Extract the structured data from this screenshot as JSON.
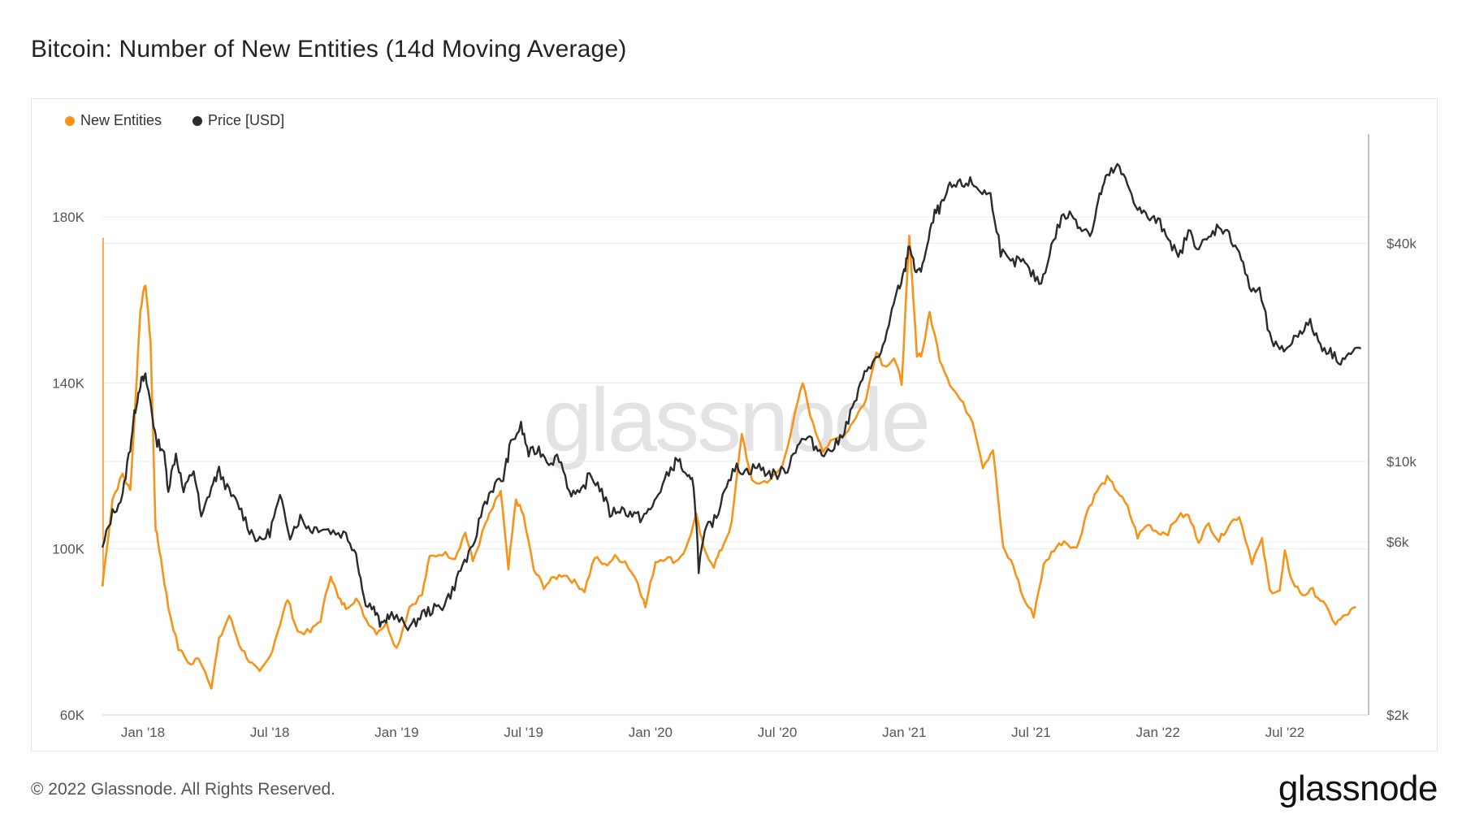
{
  "title": "Bitcoin: Number of New Entities (14d Moving Average)",
  "footer": "© 2022 Glassnode. All Rights Reserved.",
  "brand": "glassnode",
  "watermark": "glassnode",
  "colors": {
    "entities": "#f7931a",
    "price": "#2b2b2b",
    "grid": "#ececec",
    "axis": "#9a9a9a"
  },
  "chart_data": {
    "type": "line",
    "title": "Bitcoin: Number of New Entities (14d Moving Average)",
    "x_range": [
      2017.84,
      2022.83
    ],
    "x_ticks": [
      {
        "label": "Jan '18",
        "x": 2018.0
      },
      {
        "label": "Jul '18",
        "x": 2018.5
      },
      {
        "label": "Jan '19",
        "x": 2019.0
      },
      {
        "label": "Jul '19",
        "x": 2019.5
      },
      {
        "label": "Jan '20",
        "x": 2020.0
      },
      {
        "label": "Jul '20",
        "x": 2020.5
      },
      {
        "label": "Jan '21",
        "x": 2021.0
      },
      {
        "label": "Jul '21",
        "x": 2021.5
      },
      {
        "label": "Jan '22",
        "x": 2022.0
      },
      {
        "label": "Jul '22",
        "x": 2022.5
      }
    ],
    "y_left": {
      "range": [
        60000,
        200000
      ],
      "ticks": [
        {
          "label": "60K",
          "v": 60000
        },
        {
          "label": "100K",
          "v": 100000
        },
        {
          "label": "140K",
          "v": 140000
        },
        {
          "label": "180K",
          "v": 180000
        }
      ]
    },
    "y_right": {
      "scale": "log",
      "range": [
        2000,
        80000
      ],
      "ticks": [
        {
          "label": "$2k",
          "v": 2000
        },
        {
          "label": "$6k",
          "v": 6000
        },
        {
          "label": "$10k",
          "v": 10000
        },
        {
          "label": "$40k",
          "v": 40000
        }
      ]
    },
    "legend_position": "top-left",
    "series": [
      {
        "name": "New Entities",
        "axis": "left",
        "points": [
          [
            2017.84,
            91000
          ],
          [
            2017.88,
            112000
          ],
          [
            2017.92,
            118000
          ],
          [
            2017.95,
            114000
          ],
          [
            2017.97,
            135000
          ],
          [
            2017.99,
            158000
          ],
          [
            2018.01,
            164000
          ],
          [
            2018.03,
            150000
          ],
          [
            2018.05,
            105000
          ],
          [
            2018.07,
            98000
          ],
          [
            2018.1,
            86000
          ],
          [
            2018.14,
            76000
          ],
          [
            2018.19,
            72000
          ],
          [
            2018.22,
            74000
          ],
          [
            2018.27,
            67000
          ],
          [
            2018.3,
            78000
          ],
          [
            2018.34,
            84000
          ],
          [
            2018.38,
            77000
          ],
          [
            2018.42,
            73000
          ],
          [
            2018.46,
            70000
          ],
          [
            2018.5,
            74000
          ],
          [
            2018.54,
            82000
          ],
          [
            2018.57,
            88000
          ],
          [
            2018.61,
            80000
          ],
          [
            2018.66,
            80000
          ],
          [
            2018.7,
            83000
          ],
          [
            2018.74,
            94000
          ],
          [
            2018.77,
            88000
          ],
          [
            2018.8,
            86000
          ],
          [
            2018.84,
            88000
          ],
          [
            2018.88,
            83000
          ],
          [
            2018.92,
            80000
          ],
          [
            2018.96,
            82000
          ],
          [
            2019.0,
            76000
          ],
          [
            2019.05,
            86000
          ],
          [
            2019.1,
            89000
          ],
          [
            2019.13,
            98000
          ],
          [
            2019.18,
            99000
          ],
          [
            2019.23,
            98000
          ],
          [
            2019.27,
            104000
          ],
          [
            2019.3,
            97000
          ],
          [
            2019.35,
            106000
          ],
          [
            2019.38,
            110000
          ],
          [
            2019.41,
            114000
          ],
          [
            2019.44,
            95000
          ],
          [
            2019.47,
            112000
          ],
          [
            2019.5,
            108000
          ],
          [
            2019.54,
            95000
          ],
          [
            2019.58,
            91000
          ],
          [
            2019.62,
            93000
          ],
          [
            2019.66,
            94000
          ],
          [
            2019.7,
            92000
          ],
          [
            2019.74,
            90000
          ],
          [
            2019.78,
            98000
          ],
          [
            2019.82,
            96000
          ],
          [
            2019.86,
            98000
          ],
          [
            2019.9,
            97000
          ],
          [
            2019.95,
            92000
          ],
          [
            2019.98,
            86000
          ],
          [
            2020.02,
            97000
          ],
          [
            2020.06,
            98000
          ],
          [
            2020.1,
            97000
          ],
          [
            2020.14,
            100000
          ],
          [
            2020.18,
            108000
          ],
          [
            2020.21,
            100000
          ],
          [
            2020.25,
            96000
          ],
          [
            2020.28,
            100000
          ],
          [
            2020.32,
            106000
          ],
          [
            2020.36,
            128000
          ],
          [
            2020.4,
            116000
          ],
          [
            2020.44,
            116000
          ],
          [
            2020.48,
            117000
          ],
          [
            2020.52,
            120000
          ],
          [
            2020.56,
            130000
          ],
          [
            2020.6,
            140000
          ],
          [
            2020.64,
            130000
          ],
          [
            2020.68,
            124000
          ],
          [
            2020.72,
            126000
          ],
          [
            2020.77,
            128000
          ],
          [
            2020.81,
            132000
          ],
          [
            2020.85,
            136000
          ],
          [
            2020.89,
            148000
          ],
          [
            2020.92,
            144000
          ],
          [
            2020.96,
            146000
          ],
          [
            2020.99,
            140000
          ],
          [
            2021.02,
            175000
          ],
          [
            2021.05,
            147000
          ],
          [
            2021.07,
            147000
          ],
          [
            2021.1,
            157000
          ],
          [
            2021.14,
            146000
          ],
          [
            2021.18,
            140000
          ],
          [
            2021.22,
            136000
          ],
          [
            2021.27,
            131000
          ],
          [
            2021.31,
            120000
          ],
          [
            2021.35,
            124000
          ],
          [
            2021.39,
            100000
          ],
          [
            2021.43,
            96000
          ],
          [
            2021.47,
            88000
          ],
          [
            2021.51,
            84000
          ],
          [
            2021.55,
            96000
          ],
          [
            2021.59,
            100000
          ],
          [
            2021.63,
            102000
          ],
          [
            2021.68,
            100000
          ],
          [
            2021.72,
            109000
          ],
          [
            2021.76,
            114000
          ],
          [
            2021.8,
            117000
          ],
          [
            2021.84,
            114000
          ],
          [
            2021.88,
            110000
          ],
          [
            2021.92,
            103000
          ],
          [
            2021.96,
            106000
          ],
          [
            2022.0,
            104000
          ],
          [
            2022.04,
            104000
          ],
          [
            2022.08,
            108000
          ],
          [
            2022.12,
            108000
          ],
          [
            2022.16,
            102000
          ],
          [
            2022.2,
            106000
          ],
          [
            2022.24,
            102000
          ],
          [
            2022.28,
            106000
          ],
          [
            2022.32,
            108000
          ],
          [
            2022.37,
            97000
          ],
          [
            2022.41,
            102000
          ],
          [
            2022.44,
            90000
          ],
          [
            2022.48,
            90000
          ],
          [
            2022.5,
            99000
          ],
          [
            2022.53,
            92000
          ],
          [
            2022.57,
            89000
          ],
          [
            2022.61,
            90000
          ],
          [
            2022.65,
            87000
          ],
          [
            2022.7,
            82000
          ],
          [
            2022.74,
            84000
          ],
          [
            2022.78,
            86000
          ]
        ]
      },
      {
        "name": "Price [USD]",
        "axis": "right",
        "points": [
          [
            2017.84,
            5700
          ],
          [
            2017.88,
            7200
          ],
          [
            2017.92,
            8000
          ],
          [
            2017.95,
            11000
          ],
          [
            2017.97,
            14000
          ],
          [
            2017.99,
            16500
          ],
          [
            2018.01,
            17000
          ],
          [
            2018.03,
            14500
          ],
          [
            2018.05,
            11500
          ],
          [
            2018.08,
            10800
          ],
          [
            2018.1,
            8400
          ],
          [
            2018.13,
            10500
          ],
          [
            2018.16,
            8200
          ],
          [
            2018.2,
            9500
          ],
          [
            2018.23,
            6900
          ],
          [
            2018.27,
            8500
          ],
          [
            2018.3,
            9400
          ],
          [
            2018.34,
            8200
          ],
          [
            2018.38,
            7500
          ],
          [
            2018.42,
            6500
          ],
          [
            2018.46,
            6000
          ],
          [
            2018.5,
            6400
          ],
          [
            2018.54,
            7900
          ],
          [
            2018.58,
            6300
          ],
          [
            2018.62,
            7000
          ],
          [
            2018.66,
            6500
          ],
          [
            2018.7,
            6600
          ],
          [
            2018.75,
            6400
          ],
          [
            2018.8,
            6300
          ],
          [
            2018.84,
            5600
          ],
          [
            2018.87,
            4200
          ],
          [
            2018.91,
            3900
          ],
          [
            2018.94,
            3500
          ],
          [
            2018.97,
            3800
          ],
          [
            2019.02,
            3600
          ],
          [
            2019.06,
            3500
          ],
          [
            2019.1,
            3800
          ],
          [
            2019.14,
            3900
          ],
          [
            2019.18,
            4000
          ],
          [
            2019.22,
            4400
          ],
          [
            2019.26,
            5200
          ],
          [
            2019.3,
            5700
          ],
          [
            2019.34,
            7500
          ],
          [
            2019.38,
            8500
          ],
          [
            2019.42,
            9000
          ],
          [
            2019.45,
            11200
          ],
          [
            2019.49,
            12500
          ],
          [
            2019.52,
            10500
          ],
          [
            2019.56,
            10800
          ],
          [
            2019.6,
            10000
          ],
          [
            2019.64,
            10300
          ],
          [
            2019.68,
            8300
          ],
          [
            2019.72,
            8000
          ],
          [
            2019.76,
            9200
          ],
          [
            2019.8,
            8500
          ],
          [
            2019.84,
            7200
          ],
          [
            2019.88,
            7400
          ],
          [
            2019.92,
            7200
          ],
          [
            2019.96,
            7000
          ],
          [
            2020.0,
            7300
          ],
          [
            2020.04,
            8400
          ],
          [
            2020.08,
            9500
          ],
          [
            2020.11,
            10200
          ],
          [
            2020.14,
            9000
          ],
          [
            2020.17,
            8700
          ],
          [
            2020.19,
            5100
          ],
          [
            2020.22,
            6500
          ],
          [
            2020.26,
            7000
          ],
          [
            2020.3,
            8800
          ],
          [
            2020.34,
            9600
          ],
          [
            2020.38,
            9400
          ],
          [
            2020.42,
            9700
          ],
          [
            2020.46,
            9300
          ],
          [
            2020.5,
            9200
          ],
          [
            2020.54,
            9600
          ],
          [
            2020.58,
            11200
          ],
          [
            2020.62,
            11600
          ],
          [
            2020.66,
            10800
          ],
          [
            2020.7,
            10600
          ],
          [
            2020.74,
            11300
          ],
          [
            2020.78,
            13000
          ],
          [
            2020.82,
            15500
          ],
          [
            2020.86,
            18500
          ],
          [
            2020.9,
            19200
          ],
          [
            2020.94,
            23500
          ],
          [
            2020.97,
            29000
          ],
          [
            2021.0,
            33000
          ],
          [
            2021.02,
            40000
          ],
          [
            2021.04,
            34000
          ],
          [
            2021.06,
            33000
          ],
          [
            2021.09,
            39000
          ],
          [
            2021.12,
            48000
          ],
          [
            2021.15,
            51000
          ],
          [
            2021.18,
            57000
          ],
          [
            2021.22,
            58000
          ],
          [
            2021.26,
            59000
          ],
          [
            2021.3,
            56000
          ],
          [
            2021.34,
            54000
          ],
          [
            2021.38,
            38000
          ],
          [
            2021.42,
            35000
          ],
          [
            2021.46,
            36000
          ],
          [
            2021.5,
            33000
          ],
          [
            2021.54,
            31000
          ],
          [
            2021.58,
            39000
          ],
          [
            2021.62,
            47000
          ],
          [
            2021.66,
            48000
          ],
          [
            2021.7,
            44000
          ],
          [
            2021.74,
            43000
          ],
          [
            2021.77,
            54000
          ],
          [
            2021.8,
            61000
          ],
          [
            2021.84,
            65000
          ],
          [
            2021.88,
            58000
          ],
          [
            2021.92,
            50000
          ],
          [
            2021.96,
            47000
          ],
          [
            2022.0,
            46000
          ],
          [
            2022.04,
            42000
          ],
          [
            2022.08,
            36000
          ],
          [
            2022.12,
            43000
          ],
          [
            2022.16,
            39000
          ],
          [
            2022.2,
            41000
          ],
          [
            2022.24,
            45000
          ],
          [
            2022.28,
            42000
          ],
          [
            2022.32,
            38000
          ],
          [
            2022.36,
            30000
          ],
          [
            2022.4,
            29500
          ],
          [
            2022.44,
            22000
          ],
          [
            2022.48,
            20000
          ],
          [
            2022.52,
            21000
          ],
          [
            2022.56,
            23000
          ],
          [
            2022.6,
            24000
          ],
          [
            2022.64,
            21000
          ],
          [
            2022.68,
            20000
          ],
          [
            2022.72,
            19000
          ],
          [
            2022.76,
            19800
          ],
          [
            2022.8,
            20500
          ]
        ]
      }
    ]
  }
}
